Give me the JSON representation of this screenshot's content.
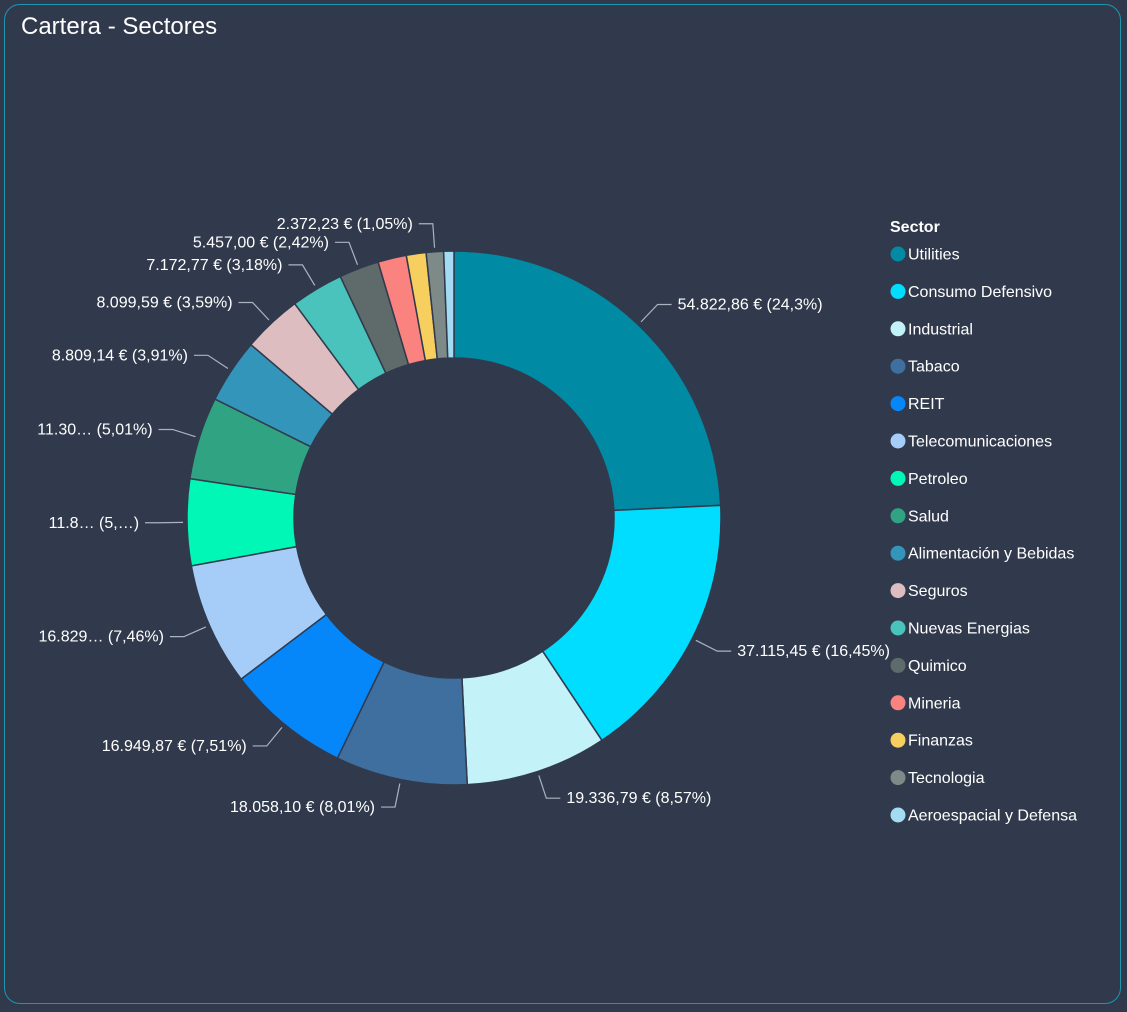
{
  "header": {
    "title": "Cartera - Sectores"
  },
  "chart_data": {
    "type": "pie",
    "donut": true,
    "legend_title": "Sector",
    "legend_position": "right",
    "slices": [
      {
        "name": "Utilities",
        "value": 54822.86,
        "percent": 24.3,
        "color": "#008aa3",
        "label": "54.822,86 € (24,3%)"
      },
      {
        "name": "Consumo Defensivo",
        "value": 37115.45,
        "percent": 16.45,
        "color": "#00ddff",
        "label": "37.115,45 € (16,45%)"
      },
      {
        "name": "Industrial",
        "value": 19336.79,
        "percent": 8.57,
        "color": "#c3f2f9",
        "label": "19.336,79 € (8,57%)"
      },
      {
        "name": "Tabaco",
        "value": 18058.1,
        "percent": 8.01,
        "color": "#3e6f9e",
        "label": "18.058,10 € (8,01%)"
      },
      {
        "name": "REIT",
        "value": 16949.87,
        "percent": 7.51,
        "color": "#0687f9",
        "label": "16.949,87 € (7,51%)"
      },
      {
        "name": "Telecomunicaciones",
        "value": 16829,
        "percent": 7.46,
        "color": "#a6cdf8",
        "label": "16.829… (7,46%)"
      },
      {
        "name": "Petroleo",
        "value": 11800,
        "percent": 5.2,
        "color": "#00f7b5",
        "label": "11.8… (5,…)"
      },
      {
        "name": "Salud",
        "value": 11300,
        "percent": 5.01,
        "color": "#2fa382",
        "label": "11.30… (5,01%)"
      },
      {
        "name": "Alimentación y Bebidas",
        "value": 8809.14,
        "percent": 3.91,
        "color": "#3495ba",
        "label": "8.809,14 € (3,91%)"
      },
      {
        "name": "Seguros",
        "value": 8099.59,
        "percent": 3.59,
        "color": "#ddbdbf",
        "label": "8.099,59 € (3,59%)"
      },
      {
        "name": "Nuevas Energias",
        "value": 7172.77,
        "percent": 3.18,
        "color": "#49c3bb",
        "label": "7.172,77 € (3,18%)"
      },
      {
        "name": "Quimico",
        "value": 5457.0,
        "percent": 2.42,
        "color": "#5f6b6b",
        "label": "5.457,00 € (2,42%)"
      },
      {
        "name": "Mineria",
        "value": 3900,
        "percent": 1.73,
        "color": "#fa827f",
        "label": ""
      },
      {
        "name": "Finanzas",
        "value": 2700,
        "percent": 1.2,
        "color": "#f6cf5f",
        "label": ""
      },
      {
        "name": "Tecnologia",
        "value": 2372.23,
        "percent": 1.05,
        "color": "#7e8a87",
        "label": "2.372,23 € (1,05%)"
      },
      {
        "name": "Aeroespacial y Defensa",
        "value": 1400,
        "percent": 0.62,
        "color": "#a3dcf2",
        "label": ""
      }
    ]
  }
}
